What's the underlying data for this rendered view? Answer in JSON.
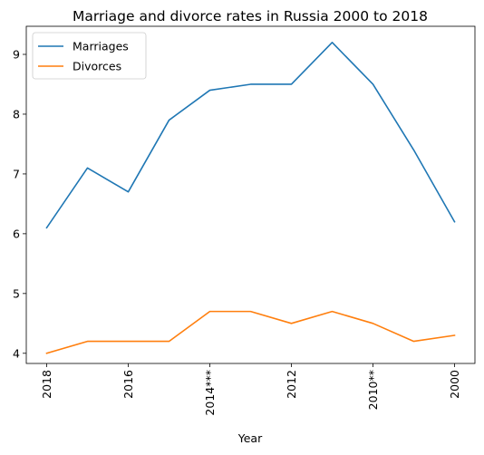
{
  "chart_data": {
    "type": "line",
    "title": "Marriage and divorce rates in Russia 2000 to 2018",
    "xlabel": "Year",
    "ylabel": "",
    "x_tick_labels": [
      "2018",
      "2016",
      "2014***",
      "2012",
      "2010**",
      "2000"
    ],
    "x_tick_positions": [
      0,
      2,
      4,
      6,
      8,
      10
    ],
    "x": [
      0,
      1,
      2,
      3,
      4,
      5,
      6,
      7,
      8,
      9,
      10
    ],
    "ylim": [
      3.83,
      9.47
    ],
    "y_ticks": [
      4,
      5,
      6,
      7,
      8,
      9
    ],
    "grid": false,
    "legend_position": "top-left",
    "series": [
      {
        "name": "Marriages",
        "color": "#1f77b4",
        "values": [
          6.1,
          7.1,
          6.7,
          7.9,
          8.4,
          8.5,
          8.5,
          9.2,
          8.5,
          7.4,
          6.2
        ]
      },
      {
        "name": "Divorces",
        "color": "#ff7f0e",
        "values": [
          4.0,
          4.2,
          4.2,
          4.2,
          4.7,
          4.7,
          4.5,
          4.7,
          4.5,
          4.2,
          4.3
        ]
      }
    ]
  }
}
